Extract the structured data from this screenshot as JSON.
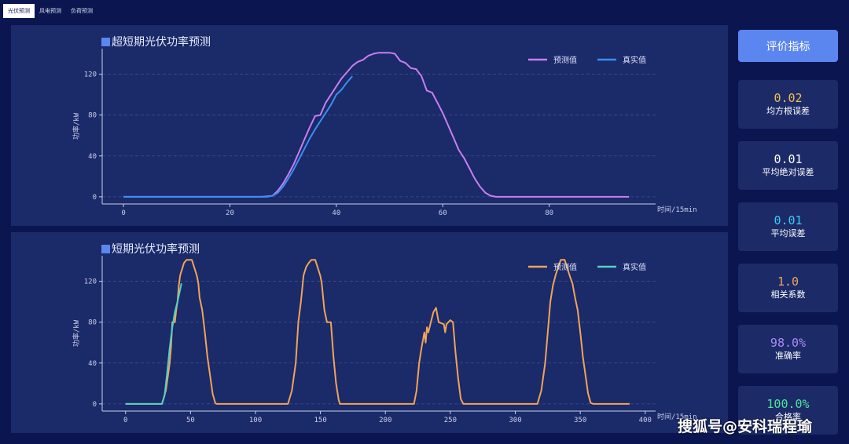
{
  "tabs": [
    {
      "label": "光伏预测",
      "active": true
    },
    {
      "label": "风电预测",
      "active": false
    },
    {
      "label": "负荷预测",
      "active": false
    }
  ],
  "side": {
    "button_label": "评价指标",
    "metrics": [
      {
        "value": "0.02",
        "label": "均方根误差",
        "color": "#f0c04a"
      },
      {
        "value": "0.01",
        "label": "平均绝对误差",
        "color": "#ffffff"
      },
      {
        "value": "0.01",
        "label": "平均误差",
        "color": "#3cc8f5"
      },
      {
        "value": "1.0",
        "label": "相关系数",
        "color": "#f0a45a"
      },
      {
        "value": "98.0%",
        "label": "准确率",
        "color": "#a98bf5"
      },
      {
        "value": "100.0%",
        "label": "合格率",
        "color": "#4fe3a0"
      }
    ]
  },
  "watermark": "搜狐号@安科瑞程瑜",
  "chart_data": [
    {
      "type": "line",
      "title": "超短期光伏功率预测",
      "xlabel": "时间/15min",
      "ylabel": "功率/kW",
      "xlim": [
        -4,
        100
      ],
      "ylim": [
        -7,
        145
      ],
      "xticks": [
        0,
        20,
        40,
        60,
        80
      ],
      "yticks": [
        0,
        40,
        80,
        120
      ],
      "legend_position": "top-right",
      "series": [
        {
          "name": "预测值",
          "color": "#c77ff0",
          "points": [
            [
              0,
              0
            ],
            [
              26,
              0
            ],
            [
              28,
              1
            ],
            [
              29,
              6
            ],
            [
              30,
              13
            ],
            [
              31,
              22
            ],
            [
              32,
              32
            ],
            [
              33,
              44
            ],
            [
              34,
              56
            ],
            [
              35,
              68
            ],
            [
              36,
              79
            ],
            [
              37,
              80
            ],
            [
              38,
              92
            ],
            [
              39,
              100
            ],
            [
              40,
              108
            ],
            [
              41,
              116
            ],
            [
              42,
              122
            ],
            [
              43,
              128
            ],
            [
              44,
              132
            ],
            [
              45,
              134
            ],
            [
              46,
              138
            ],
            [
              47,
              140
            ],
            [
              48,
              141
            ],
            [
              49,
              141
            ],
            [
              50,
              141
            ],
            [
              51,
              140
            ],
            [
              52,
              133
            ],
            [
              53,
              131
            ],
            [
              54,
              126
            ],
            [
              55,
              125
            ],
            [
              56,
              118
            ],
            [
              57,
              104
            ],
            [
              58,
              102
            ],
            [
              59,
              92
            ],
            [
              60,
              82
            ],
            [
              61,
              70
            ],
            [
              62,
              58
            ],
            [
              63,
              46
            ],
            [
              64,
              38
            ],
            [
              65,
              28
            ],
            [
              66,
              18
            ],
            [
              67,
              10
            ],
            [
              68,
              4
            ],
            [
              69,
              1
            ],
            [
              70,
              0
            ],
            [
              95,
              0
            ]
          ]
        },
        {
          "name": "真实值",
          "color": "#3a8ef2",
          "points": [
            [
              0,
              0
            ],
            [
              27,
              0
            ],
            [
              28,
              1
            ],
            [
              29,
              4
            ],
            [
              30,
              10
            ],
            [
              31,
              18
            ],
            [
              32,
              27
            ],
            [
              33,
              37
            ],
            [
              34,
              47
            ],
            [
              35,
              57
            ],
            [
              36,
              66
            ],
            [
              37,
              74
            ],
            [
              38,
              82
            ],
            [
              39,
              90
            ],
            [
              40,
              100
            ],
            [
              41,
              105
            ],
            [
              42,
              112
            ],
            [
              43,
              118
            ]
          ]
        }
      ]
    },
    {
      "type": "line",
      "title": "短期光伏功率预测",
      "xlabel": "时间/15min",
      "ylabel": "功率/kW",
      "xlim": [
        -18,
        408
      ],
      "ylim": [
        -7,
        145
      ],
      "xticks": [
        0,
        50,
        100,
        150,
        200,
        250,
        300,
        350,
        400
      ],
      "yticks": [
        0,
        40,
        80,
        120
      ],
      "legend_position": "top-right",
      "series": [
        {
          "name": "预测值",
          "color": "#f0a45a",
          "points": [
            [
              0,
              0
            ],
            [
              28,
              0
            ],
            [
              31,
              13
            ],
            [
              34,
              40
            ],
            [
              35,
              56
            ],
            [
              36,
              80
            ],
            [
              38,
              80
            ],
            [
              39,
              92
            ],
            [
              40,
              100
            ],
            [
              41,
              116
            ],
            [
              42,
              126
            ],
            [
              44,
              134
            ],
            [
              45,
              138
            ],
            [
              47,
              141
            ],
            [
              51,
              141
            ],
            [
              53,
              133
            ],
            [
              55,
              125
            ],
            [
              56,
              118
            ],
            [
              57,
              104
            ],
            [
              59,
              92
            ],
            [
              61,
              70
            ],
            [
              63,
              46
            ],
            [
              65,
              28
            ],
            [
              67,
              10
            ],
            [
              69,
              1
            ],
            [
              70,
              0
            ],
            [
              125,
              0
            ],
            [
              128,
              13
            ],
            [
              131,
              40
            ],
            [
              133,
              80
            ],
            [
              135,
              100
            ],
            [
              137,
              126
            ],
            [
              139,
              134
            ],
            [
              141,
              138
            ],
            [
              143,
              141
            ],
            [
              146,
              141
            ],
            [
              148,
              133
            ],
            [
              150,
              125
            ],
            [
              151,
              118
            ],
            [
              153,
              92
            ],
            [
              155,
              80
            ],
            [
              158,
              80
            ],
            [
              160,
              46
            ],
            [
              162,
              20
            ],
            [
              164,
              4
            ],
            [
              165,
              0
            ],
            [
              222,
              0
            ],
            [
              224,
              13
            ],
            [
              226,
              40
            ],
            [
              228,
              56
            ],
            [
              230,
              70
            ],
            [
              231,
              60
            ],
            [
              232,
              75
            ],
            [
              233,
              70
            ],
            [
              235,
              80
            ],
            [
              237,
              90
            ],
            [
              239,
              94
            ],
            [
              241,
              80
            ],
            [
              245,
              78
            ],
            [
              246,
              70
            ],
            [
              247,
              78
            ],
            [
              250,
              82
            ],
            [
              252,
              80
            ],
            [
              254,
              50
            ],
            [
              256,
              25
            ],
            [
              258,
              5
            ],
            [
              260,
              0
            ],
            [
              317,
              0
            ],
            [
              320,
              13
            ],
            [
              323,
              40
            ],
            [
              325,
              70
            ],
            [
              327,
              100
            ],
            [
              329,
              116
            ],
            [
              331,
              126
            ],
            [
              333,
              134
            ],
            [
              335,
              141
            ],
            [
              338,
              141
            ],
            [
              340,
              133
            ],
            [
              342,
              125
            ],
            [
              344,
              118
            ],
            [
              346,
              104
            ],
            [
              348,
              92
            ],
            [
              350,
              70
            ],
            [
              352,
              46
            ],
            [
              354,
              28
            ],
            [
              356,
              10
            ],
            [
              358,
              1
            ],
            [
              360,
              0
            ],
            [
              388,
              0
            ]
          ]
        },
        {
          "name": "真实值",
          "color": "#55cfc4",
          "points": [
            [
              0,
              0
            ],
            [
              28,
              0
            ],
            [
              30,
              8
            ],
            [
              32,
              30
            ],
            [
              34,
              55
            ],
            [
              36,
              75
            ],
            [
              38,
              90
            ],
            [
              40,
              100
            ],
            [
              42,
              112
            ],
            [
              43,
              118
            ]
          ]
        }
      ]
    }
  ]
}
